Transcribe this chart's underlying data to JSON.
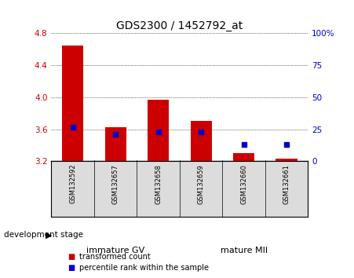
{
  "title": "GDS2300 / 1452792_at",
  "samples": [
    "GSM132592",
    "GSM132657",
    "GSM132658",
    "GSM132659",
    "GSM132660",
    "GSM132661"
  ],
  "red_bar_top": [
    4.65,
    3.63,
    3.97,
    3.7,
    3.3,
    3.23
  ],
  "red_bar_bottom": [
    3.2,
    3.2,
    3.2,
    3.2,
    3.2,
    3.2
  ],
  "blue_values": [
    3.63,
    3.54,
    3.57,
    3.57,
    3.41,
    3.41
  ],
  "ylim": [
    3.2,
    4.8
  ],
  "yticks_left": [
    3.2,
    3.6,
    4.0,
    4.4,
    4.8
  ],
  "yticks_right": [
    0,
    25,
    50,
    75,
    100
  ],
  "yticks_right_vals": [
    3.2,
    3.6,
    4.0,
    4.4,
    4.8
  ],
  "groups": [
    {
      "label": "immature GV",
      "start": 0,
      "end": 3,
      "color": "#90EE90"
    },
    {
      "label": "mature MII",
      "start": 3,
      "end": 6,
      "color": "#55CC55"
    }
  ],
  "group_label": "development stage",
  "red_color": "#CC0000",
  "blue_color": "#0000CC",
  "bar_width": 0.5,
  "background_color": "#DCDCDC",
  "plot_bg": "#FFFFFF",
  "legend_red": "transformed count",
  "legend_blue": "percentile rank within the sample",
  "title_fontsize": 10,
  "tick_fontsize": 7.5,
  "sample_fontsize": 6,
  "group_fontsize": 8
}
